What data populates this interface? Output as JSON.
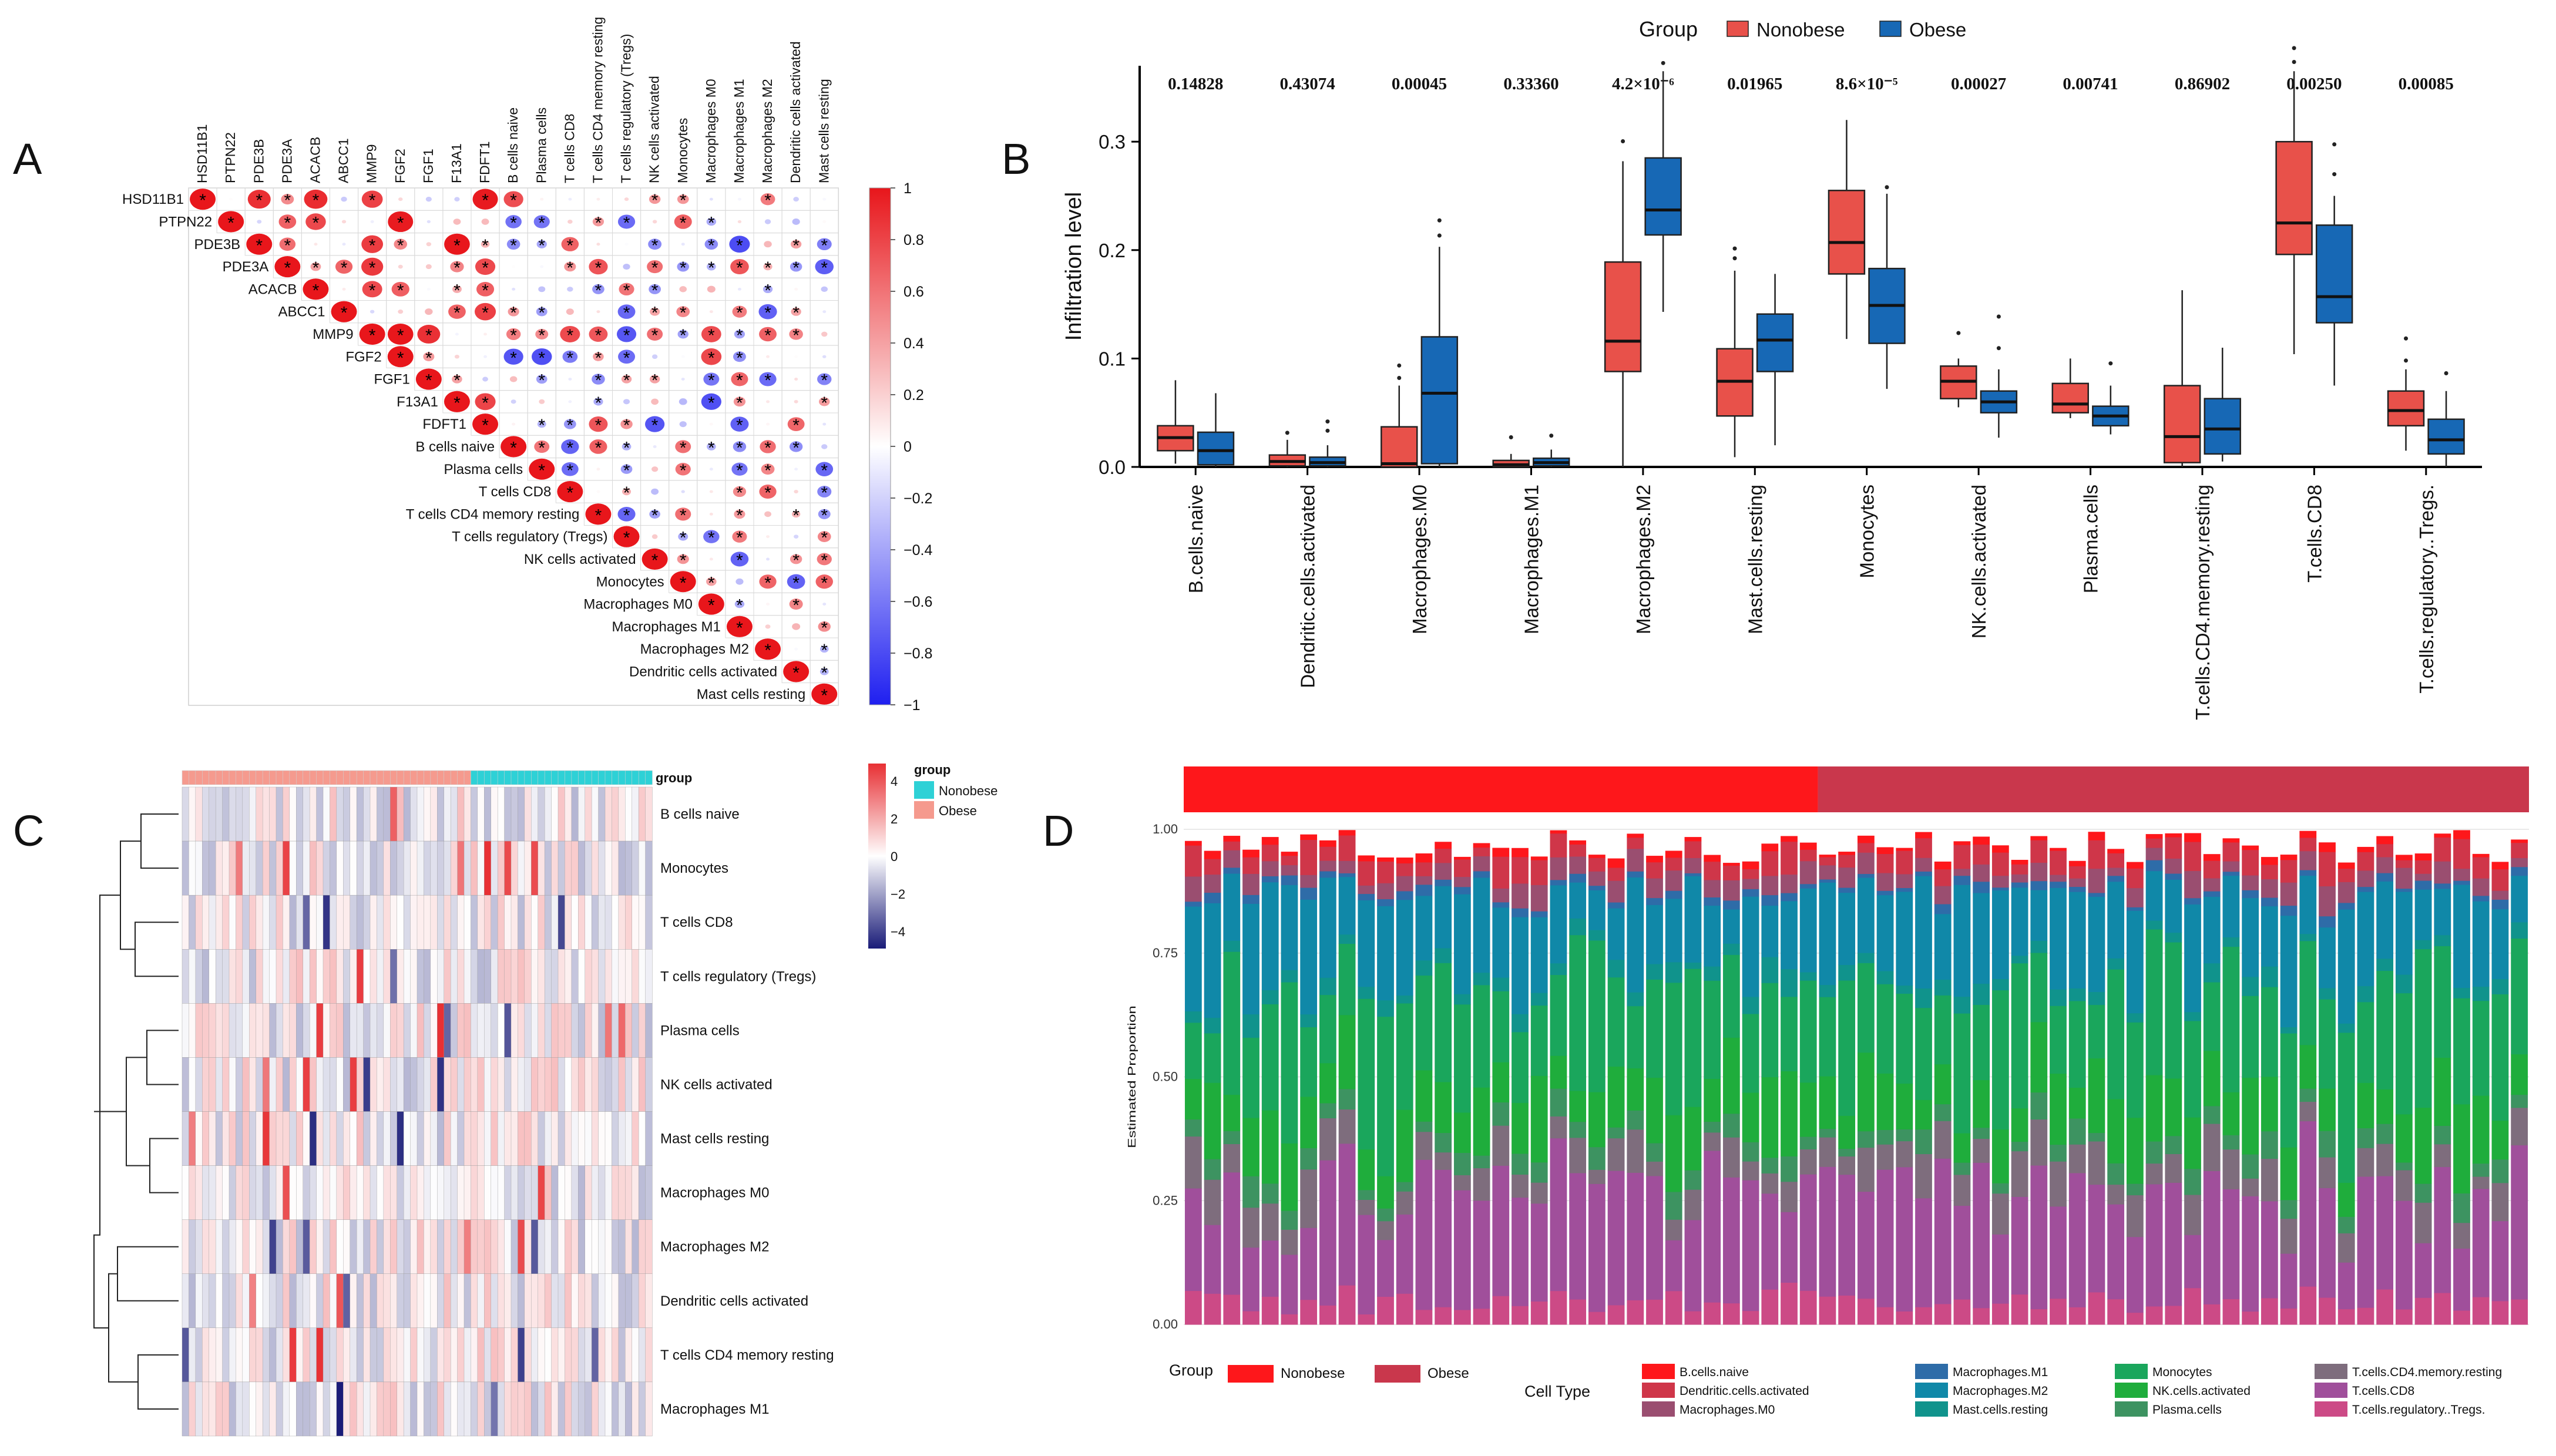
{
  "letters": {
    "a": "A",
    "b": "B",
    "c": "C",
    "d": "D"
  },
  "panelA": {
    "labels": [
      "HSD11B1",
      "PTPN22",
      "PDE3B",
      "PDE3A",
      "ACACB",
      "ABCC1",
      "MMP9",
      "FGF2",
      "FGF1",
      "F13A1",
      "FDFT1",
      "B cells naive",
      "Plasma cells",
      "T cells CD8",
      "T cells CD4 memory resting",
      "T cells regulatory (Tregs)",
      "NK cells activated",
      "Monocytes",
      "Macrophages M0",
      "Macrophages M1",
      "Macrophages M2",
      "Dendritic cells activated",
      "Mast cells resting"
    ],
    "colorbar_ticks": [
      "1",
      "0.8",
      "0.6",
      "0.4",
      "0.2",
      "0",
      "−0.2",
      "−0.4",
      "−0.6",
      "−0.8",
      "−1"
    ],
    "marker": "*",
    "colors": {
      "pos": "#e8161b",
      "neg": "#1f1ff0",
      "mid": "#ffffff"
    }
  },
  "chart_data": [
    {
      "panel": "B",
      "type": "box",
      "legend_title": "Group",
      "series": [
        {
          "name": "Nonobese",
          "color": "#e8514a"
        },
        {
          "name": "Obese",
          "color": "#1768b5"
        }
      ],
      "ylabel": "Infiltration level",
      "ylim": [
        0,
        0.37
      ],
      "yticks": [
        "0.0",
        "0.1",
        "0.2",
        "0.3"
      ],
      "categories": [
        "B.cells.naive",
        "Dendritic.cells.activated",
        "Macrophages.M0",
        "Macrophages.M1",
        "Macrophages.M2",
        "Mast.cells.resting",
        "Monocytes",
        "NK.cells.activated",
        "Plasma.cells",
        "T.cells.CD4.memory.resting",
        "T.cells.CD8",
        "T.cells.regulatory..Tregs."
      ],
      "pvalues": [
        "0.14828",
        "0.43074",
        "0.00045",
        "0.33360",
        "4.2×10⁻⁶",
        "0.01965",
        "8.6×10⁻⁵",
        "0.00027",
        "0.00741",
        "0.86902",
        "0.00250",
        "0.00085"
      ],
      "boxes": [
        [
          [
            0.003,
            0.015,
            0.027,
            0.038,
            0.08
          ],
          [
            0,
            0.002,
            0.015,
            0.032,
            0.068
          ]
        ],
        [
          [
            0,
            0.001,
            0.005,
            0.011,
            0.025
          ],
          [
            0,
            0.001,
            0.004,
            0.009,
            0.02
          ]
        ],
        [
          [
            0,
            0,
            0.003,
            0.037,
            0.075
          ],
          [
            0,
            0.003,
            0.068,
            0.12,
            0.203
          ]
        ],
        [
          [
            0,
            0,
            0.002,
            0.006,
            0.012
          ],
          [
            0,
            0.001,
            0.004,
            0.008,
            0.016
          ]
        ],
        [
          [
            0,
            0.088,
            0.116,
            0.189,
            0.282
          ],
          [
            0.143,
            0.214,
            0.237,
            0.285,
            0.365
          ]
        ],
        [
          [
            0.009,
            0.047,
            0.079,
            0.109,
            0.181
          ],
          [
            0.02,
            0.088,
            0.117,
            0.141,
            0.178
          ]
        ],
        [
          [
            0.118,
            0.178,
            0.207,
            0.255,
            0.32
          ],
          [
            0.072,
            0.114,
            0.149,
            0.183,
            0.252
          ]
        ],
        [
          [
            0.055,
            0.063,
            0.079,
            0.093,
            0.1
          ],
          [
            0.027,
            0.05,
            0.06,
            0.07,
            0.09
          ]
        ],
        [
          [
            0.045,
            0.05,
            0.058,
            0.077,
            0.1
          ],
          [
            0.03,
            0.038,
            0.047,
            0.056,
            0.075
          ]
        ],
        [
          [
            0,
            0.004,
            0.028,
            0.075,
            0.163
          ],
          [
            0.005,
            0.012,
            0.035,
            0.063,
            0.11
          ]
        ],
        [
          [
            0.104,
            0.196,
            0.225,
            0.3,
            0.365
          ],
          [
            0.075,
            0.133,
            0.157,
            0.223,
            0.25
          ]
        ],
        [
          [
            0.015,
            0.038,
            0.052,
            0.07,
            0.09
          ],
          [
            0,
            0.012,
            0.025,
            0.044,
            0.07
          ]
        ]
      ]
    },
    {
      "panel": "C",
      "type": "heatmap",
      "rows": [
        "B cells naive",
        "Monocytes",
        "T cells CD8",
        "T cells regulatory (Tregs)",
        "Plasma cells",
        "NK cells activated",
        "Mast cells resting",
        "Macrophages M0",
        "Macrophages M2",
        "Dendritic cells activated",
        "T cells CD4 memory resting",
        "Macrophages M1"
      ],
      "top_annotation": "group",
      "legend_title": "group",
      "legend_items": [
        {
          "name": "Nonobese",
          "color": "#2ed1d6"
        },
        {
          "name": "Obese",
          "color": "#f59a8e"
        }
      ],
      "colorbar_ticks": [
        "4",
        "2",
        "0",
        "−2",
        "−4"
      ],
      "range": [
        -5,
        5
      ]
    },
    {
      "panel": "D",
      "type": "stacked-bar",
      "ylabel": "Estimated Proportion",
      "yticks": [
        "0.00",
        "0.25",
        "0.50",
        "0.75",
        "1.00"
      ],
      "group_title": "Group",
      "groups": [
        {
          "name": "Nonobese",
          "color": "#fe171b"
        },
        {
          "name": "Obese",
          "color": "#c9374c"
        }
      ],
      "legend_title": "Cell Type",
      "cell_types": [
        {
          "name": "B.cells.naive",
          "color": "#fe171b"
        },
        {
          "name": "Dendritic.cells.activated",
          "color": "#cf3649"
        },
        {
          "name": "Macrophages.M0",
          "color": "#9a4e70"
        },
        {
          "name": "Macrophages.M1",
          "color": "#2e6ca8"
        },
        {
          "name": "Macrophages.M2",
          "color": "#1088a8"
        },
        {
          "name": "Mast.cells.resting",
          "color": "#10938c"
        },
        {
          "name": "Monocytes",
          "color": "#1aa65c"
        },
        {
          "name": "NK.cells.activated",
          "color": "#1fad3c"
        },
        {
          "name": "Plasma.cells",
          "color": "#3d9361"
        },
        {
          "name": "T.cells.CD4.memory.resting",
          "color": "#7e6d7d"
        },
        {
          "name": "T.cells.CD8",
          "color": "#a04f9b"
        },
        {
          "name": "T.cells.regulatory..Tregs.",
          "color": "#cc4a86"
        }
      ],
      "n_nonobese": 33,
      "n_obese": 37
    }
  ]
}
